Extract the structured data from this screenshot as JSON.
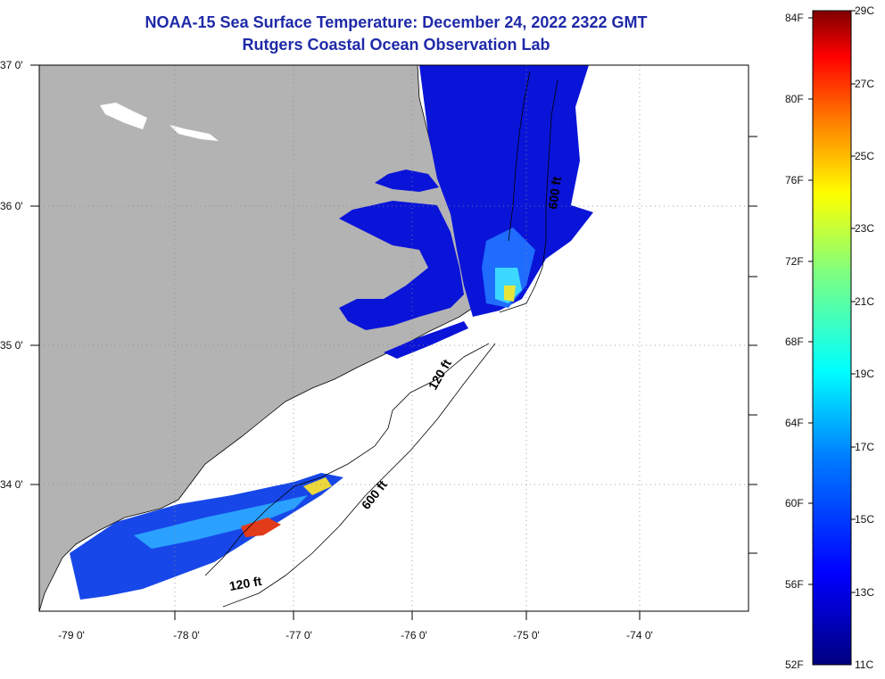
{
  "title_line1": "NOAA-15 Sea Surface Temperature:  December 24, 2022 2322 GMT",
  "title_line2": "Rutgers Coastal Ocean Observation Lab",
  "map": {
    "land_color": "#b3b3b3",
    "ocean_color": "#ffffff",
    "lat_labels": [
      "37 0'",
      "36 0'",
      "35 0'",
      "34 0'"
    ],
    "lon_labels": [
      "-79 0'",
      "-78 0'",
      "-77 0'",
      "-76 0'",
      "-75 0'",
      "-74 0'"
    ],
    "contours": [
      {
        "label": "120 ft"
      },
      {
        "label": "600 ft"
      },
      {
        "label": "120 ft"
      },
      {
        "label": "600 ft"
      }
    ]
  },
  "colorbar": {
    "colors": [
      "#00007f",
      "#0000ff",
      "#007fff",
      "#00ffff",
      "#7fff7f",
      "#ffff00",
      "#ff7f00",
      "#ff0000",
      "#7f0000"
    ],
    "fahrenheit": [
      "84F",
      "80F",
      "76F",
      "72F",
      "68F",
      "64F",
      "60F",
      "56F",
      "52F"
    ],
    "celsius": [
      "29C",
      "27C",
      "25C",
      "23C",
      "21C",
      "19C",
      "17C",
      "15C",
      "13C",
      "11C"
    ]
  }
}
